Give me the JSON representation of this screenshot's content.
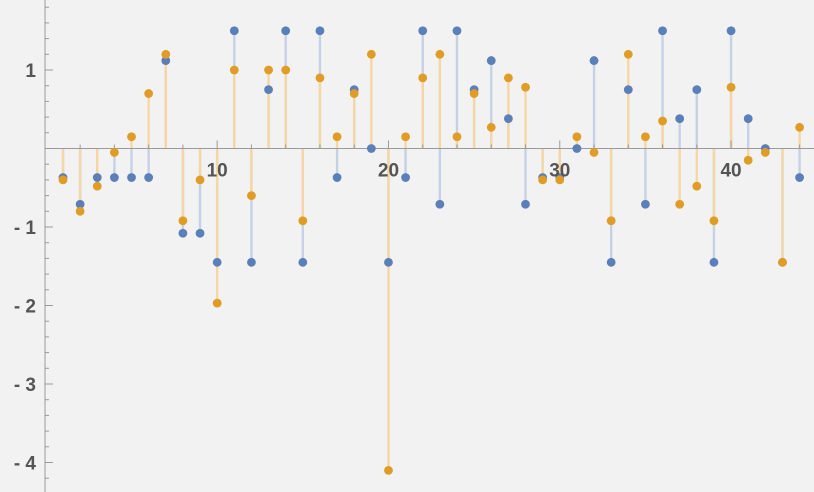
{
  "chart_data": {
    "type": "scatter",
    "style": "stem",
    "title": "",
    "xlabel": "",
    "ylabel": "",
    "xlim": [
      0.5,
      44.5
    ],
    "ylim": [
      -4.35,
      1.85
    ],
    "x_ticks": [
      10,
      20,
      30,
      40
    ],
    "y_ticks": [
      -4,
      -3,
      -2,
      -1,
      1
    ],
    "y_tick_labels": [
      "- 4",
      "- 3",
      "- 2",
      "- 1",
      "1"
    ],
    "grid": false,
    "series": [
      {
        "color": "#5b7fb9",
        "stem_color": "#c5d2e6",
        "x": [
          1,
          2,
          3,
          4,
          5,
          6,
          7,
          8,
          9,
          10,
          11,
          12,
          13,
          14,
          15,
          16,
          17,
          18,
          19,
          20,
          21,
          22,
          23,
          24,
          25,
          26,
          27,
          28,
          29,
          30,
          31,
          32,
          33,
          34,
          35,
          36,
          37,
          38,
          39,
          40,
          41,
          42,
          43,
          44
        ],
        "values": [
          -0.37,
          -0.71,
          -0.37,
          -0.37,
          -0.37,
          -0.37,
          1.12,
          -1.08,
          -1.08,
          -1.45,
          1.5,
          -1.45,
          0.75,
          1.5,
          -1.45,
          1.5,
          -0.37,
          0.75,
          0.0,
          -1.45,
          -0.37,
          1.5,
          -0.71,
          1.5,
          0.75,
          1.12,
          0.38,
          -0.71,
          -0.37,
          -0.37,
          0.0,
          1.12,
          -1.45,
          0.75,
          -0.71,
          1.5,
          0.38,
          0.75,
          -1.45,
          1.5,
          0.38,
          0.0,
          -1.45,
          -0.37
        ]
      },
      {
        "color": "#e09c24",
        "stem_color": "#f5d7a6",
        "x": [
          1,
          2,
          3,
          4,
          5,
          6,
          7,
          8,
          9,
          10,
          11,
          12,
          13,
          14,
          15,
          16,
          17,
          18,
          19,
          20,
          21,
          22,
          23,
          24,
          25,
          26,
          27,
          28,
          29,
          30,
          31,
          32,
          33,
          34,
          35,
          36,
          37,
          38,
          39,
          40,
          41,
          42,
          43,
          44
        ],
        "values": [
          -0.4,
          -0.8,
          -0.48,
          -0.05,
          0.15,
          0.7,
          1.2,
          -0.92,
          -0.4,
          -1.97,
          1.0,
          -0.6,
          1.0,
          1.0,
          -0.92,
          0.9,
          0.15,
          0.7,
          1.2,
          -4.1,
          0.15,
          0.9,
          1.2,
          0.15,
          0.7,
          0.27,
          0.9,
          0.78,
          -0.4,
          -0.4,
          0.15,
          -0.05,
          -0.92,
          1.2,
          0.15,
          0.35,
          -0.71,
          -0.48,
          -0.92,
          0.78,
          -0.15,
          -0.05,
          -1.45,
          0.27
        ]
      }
    ]
  }
}
